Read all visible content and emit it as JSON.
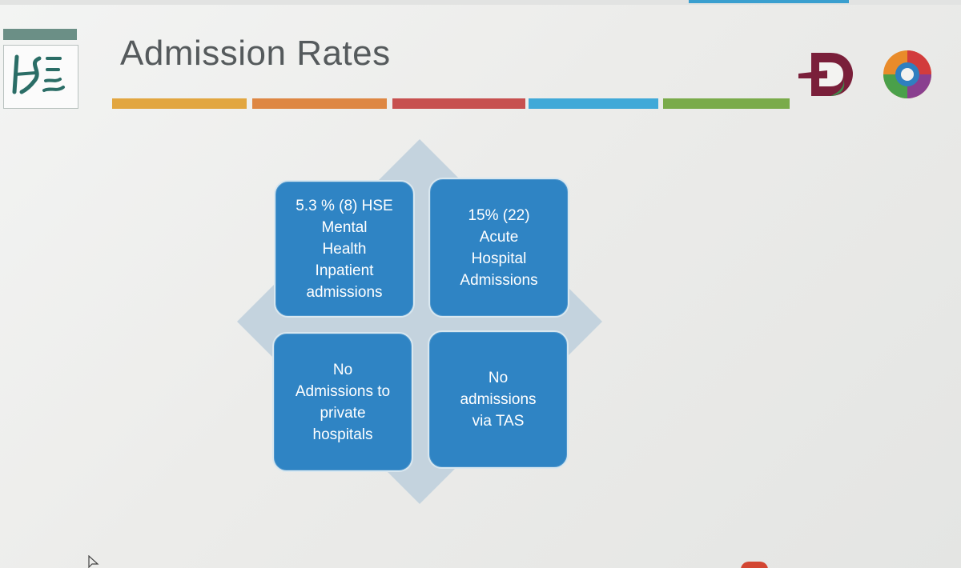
{
  "slide": {
    "title": "Admission Rates",
    "logo_text": "HSE",
    "brand_colors": [
      "#e2a640",
      "#de8743",
      "#c7504f",
      "#40a9d8",
      "#7aab4a"
    ]
  },
  "quadrants": [
    {
      "id": "top-left",
      "text": "5.3 % (8) HSE\nMental\nHealth\nInpatient\nadmissions"
    },
    {
      "id": "top-right",
      "text": "15%  (22)\nAcute\nHospital\nAdmissions"
    },
    {
      "id": "bottom-left",
      "text": "No\nAdmissions to\nprivate\nhospitals"
    },
    {
      "id": "bottom-right",
      "text": "No\nadmissions\nvia TAS"
    }
  ],
  "colors": {
    "box_fill": "#2f84c4",
    "diamond_fill": "#c4d3de",
    "title_color": "#555a5c"
  },
  "icons": [
    "hse-logo-icon",
    "d-logo-icon",
    "wheel-logo-icon",
    "mouse-cursor-icon"
  ]
}
